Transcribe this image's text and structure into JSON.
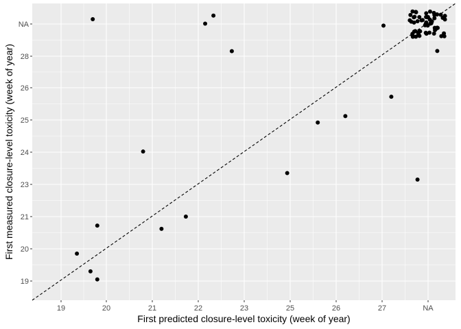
{
  "chart_data": {
    "type": "scatter",
    "title": "",
    "xlabel": "First predicted closure-level toxicity (week of year)",
    "ylabel": "First measured closure-level toxicity (week of year)",
    "x_ticks": [
      "19",
      "20",
      "21",
      "22",
      "23",
      "25",
      "26",
      "27",
      "NA"
    ],
    "y_ticks": [
      "19",
      "20",
      "21",
      "23",
      "24",
      "25",
      "26",
      "28",
      "NA"
    ],
    "reference_line": "y = x (dashed)",
    "grid": true,
    "panel_background": "#ebebeb",
    "grid_color": "#ffffff",
    "point_color": "#000000",
    "points": [
      {
        "x": 19.35,
        "y": 19.85
      },
      {
        "x": 19.65,
        "y": 19.3
      },
      {
        "x": 19.8,
        "y": 19.05
      },
      {
        "x": 19.8,
        "y": 20.72
      },
      {
        "x": 19.7,
        "y": "NA +0.15"
      },
      {
        "x": 20.8,
        "y": 24.02
      },
      {
        "x": 21.2,
        "y": 20.62
      },
      {
        "x": 21.73,
        "y": 21.0
      },
      {
        "x": 22.15,
        "y": "NA +0.01"
      },
      {
        "x": 22.33,
        "y": "NA +0.26"
      },
      {
        "x": 22.73,
        "y": 28.32
      },
      {
        "x": 24.87,
        "y": 23.35
      },
      {
        "x": 25.6,
        "y": 24.92
      },
      {
        "x": 26.2,
        "y": 25.12
      },
      {
        "x": 27.03,
        "y": "NA -0.05"
      },
      {
        "x": 27.2,
        "y": 25.72
      },
      {
        "x": 27.77,
        "y": 23.15
      },
      {
        "x": "NA +0.2",
        "y": 28.33
      }
    ],
    "na_cluster": {
      "x": "NA",
      "y": "NA",
      "count": 60
    }
  }
}
